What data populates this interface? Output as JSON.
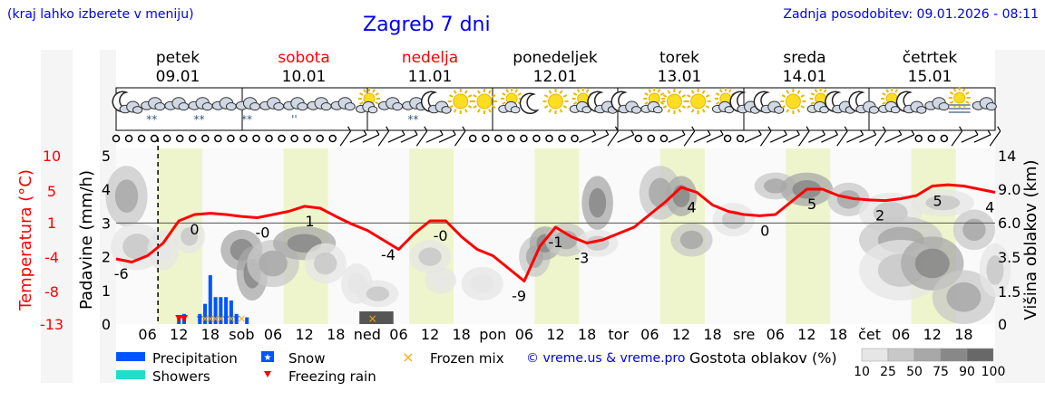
{
  "header": {
    "note": "(kraj lahko izberete v meniju)",
    "title": "Zagreb 7 dni",
    "updated": "Zadnja posodobitev: 09.01.2026 - 08:11",
    "colors": {
      "link": "#0000ee",
      "weekend": "#ff0000"
    }
  },
  "days": [
    {
      "name": "petek",
      "date": "09.01",
      "weekend": false
    },
    {
      "name": "sobota",
      "date": "10.01",
      "weekend": true
    },
    {
      "name": "nedelja",
      "date": "11.01",
      "weekend": true
    },
    {
      "name": "ponedeljek",
      "date": "12.01",
      "weekend": false
    },
    {
      "name": "torek",
      "date": "13.01",
      "weekend": false
    },
    {
      "name": "sreda",
      "date": "14.01",
      "weekend": false
    },
    {
      "name": "četrtek",
      "date": "15.01",
      "weekend": false
    }
  ],
  "weather_icons": [
    "night-cloud",
    "cloud",
    "cloud-snow",
    "cloud-snow",
    "cloud",
    "cloud-snow",
    "cloud",
    "cloud-drizzle",
    "cloud",
    "cloud",
    "sun-cloud",
    "cloud",
    "cloud-snow",
    "night-cloud",
    "sun",
    "sun",
    "sun-cloud",
    "night",
    "sun",
    "sun-cloud",
    "night-cloud",
    "night-cloud",
    "sun-cloud",
    "sun",
    "sun",
    "sun-cloud",
    "night-cloud",
    "night-cloud",
    "sun",
    "sun-cloud",
    "night-cloud",
    "night-cloud",
    "sun-cloud",
    "night-cloud",
    "cloud",
    "fog",
    "cloud"
  ],
  "snow_marks": [
    {
      "icon": 1,
      "text": "**"
    },
    {
      "icon": 3,
      "text": "**"
    },
    {
      "icon": 5,
      "text": "**"
    },
    {
      "icon": 7,
      "text": "''"
    },
    {
      "icon": 12,
      "text": "**"
    }
  ],
  "chart_data": {
    "type": "line",
    "x_unit": "hours from 09.01 00:00",
    "x_range": [
      0,
      168
    ],
    "x_tick_labels": [
      {
        "x": 6,
        "label": "06"
      },
      {
        "x": 12,
        "label": "12"
      },
      {
        "x": 18,
        "label": "18"
      },
      {
        "x": 24,
        "label": "sob"
      },
      {
        "x": 30,
        "label": "06"
      },
      {
        "x": 36,
        "label": "12"
      },
      {
        "x": 42,
        "label": "18"
      },
      {
        "x": 48,
        "label": "ned"
      },
      {
        "x": 54,
        "label": "06"
      },
      {
        "x": 60,
        "label": "12"
      },
      {
        "x": 66,
        "label": "18"
      },
      {
        "x": 72,
        "label": "pon"
      },
      {
        "x": 78,
        "label": "06"
      },
      {
        "x": 84,
        "label": "12"
      },
      {
        "x": 90,
        "label": "18"
      },
      {
        "x": 96,
        "label": "tor"
      },
      {
        "x": 102,
        "label": "06"
      },
      {
        "x": 108,
        "label": "12"
      },
      {
        "x": 114,
        "label": "18"
      },
      {
        "x": 120,
        "label": "sre"
      },
      {
        "x": 126,
        "label": "06"
      },
      {
        "x": 132,
        "label": "12"
      },
      {
        "x": 138,
        "label": "18"
      },
      {
        "x": 144,
        "label": "čet"
      },
      {
        "x": 150,
        "label": "06"
      },
      {
        "x": 156,
        "label": "12"
      },
      {
        "x": 162,
        "label": "18"
      }
    ],
    "now_x": 8,
    "daylight_bands": [
      [
        8,
        16.5
      ],
      [
        32,
        40.5
      ],
      [
        56,
        64.5
      ],
      [
        80,
        88.5
      ],
      [
        104,
        112.5
      ],
      [
        128,
        136.5
      ],
      [
        152,
        160.5
      ]
    ],
    "y_left_precip": {
      "label": "Padavine (mm/h)",
      "range": [
        0,
        5
      ],
      "ticks": [
        "0",
        "1",
        "2",
        "3",
        "4",
        "5"
      ]
    },
    "y_left_temp": {
      "label": "Temperatura (°C)",
      "ticks": [
        "10",
        "5",
        "1",
        "-4",
        "-8",
        "-13"
      ]
    },
    "y_right_cloud": {
      "label": "Višina oblakov (km)",
      "ticks": [
        "0",
        "1.5",
        "3.5",
        "6.0",
        "9.0",
        "14"
      ]
    },
    "temperature": {
      "name": "",
      "color": "#ff0000",
      "points": [
        [
          0,
          -5.5
        ],
        [
          3,
          -6
        ],
        [
          6,
          -5
        ],
        [
          9,
          -3
        ],
        [
          12,
          0.5
        ],
        [
          15,
          1.5
        ],
        [
          18,
          1.7
        ],
        [
          21,
          1.5
        ],
        [
          24,
          1.2
        ],
        [
          27,
          1.0
        ],
        [
          30,
          1.5
        ],
        [
          33,
          2.0
        ],
        [
          36,
          2.8
        ],
        [
          39,
          2.5
        ],
        [
          42,
          1.2
        ],
        [
          45,
          0
        ],
        [
          48,
          -1
        ],
        [
          51,
          -2.5
        ],
        [
          54,
          -4
        ],
        [
          57,
          -1.5
        ],
        [
          60,
          0.5
        ],
        [
          63,
          0.5
        ],
        [
          66,
          -2
        ],
        [
          69,
          -4
        ],
        [
          72,
          -5
        ],
        [
          75,
          -7
        ],
        [
          78,
          -9
        ],
        [
          81,
          -3.5
        ],
        [
          84,
          -0.5
        ],
        [
          87,
          -2
        ],
        [
          90,
          -3
        ],
        [
          93,
          -2.5
        ],
        [
          96,
          -1.5
        ],
        [
          99,
          -0.5
        ],
        [
          102,
          1.5
        ],
        [
          105,
          3.5
        ],
        [
          108,
          5.8
        ],
        [
          111,
          5
        ],
        [
          114,
          3
        ],
        [
          117,
          2
        ],
        [
          120,
          1.5
        ],
        [
          123,
          1.3
        ],
        [
          126,
          1.5
        ],
        [
          129,
          3.5
        ],
        [
          132,
          5.5
        ],
        [
          135,
          5.5
        ],
        [
          138,
          4.5
        ],
        [
          141,
          4
        ],
        [
          144,
          3.8
        ],
        [
          147,
          3.7
        ],
        [
          150,
          4
        ],
        [
          153,
          4.5
        ],
        [
          156,
          6
        ],
        [
          159,
          6.2
        ],
        [
          162,
          6
        ],
        [
          165,
          5.5
        ],
        [
          168,
          5
        ]
      ]
    },
    "temperature_labels": [
      {
        "x": 1,
        "value": "-6"
      },
      {
        "x": 15,
        "value": "0"
      },
      {
        "x": 28,
        "value": "-0"
      },
      {
        "x": 37,
        "value": "1"
      },
      {
        "x": 52,
        "value": "-4"
      },
      {
        "x": 62,
        "value": "-0"
      },
      {
        "x": 77,
        "value": "-9"
      },
      {
        "x": 84,
        "value": "-1"
      },
      {
        "x": 89,
        "value": "-3"
      },
      {
        "x": 110,
        "value": "4"
      },
      {
        "x": 124,
        "value": "0"
      },
      {
        "x": 133,
        "value": "5"
      },
      {
        "x": 146,
        "value": "2"
      },
      {
        "x": 157,
        "value": "5"
      },
      {
        "x": 167,
        "value": "4"
      }
    ],
    "precipitation": {
      "name": "Precipitation",
      "color": "#0055ff",
      "bars": [
        [
          12,
          0.2
        ],
        [
          13,
          0.3
        ],
        [
          16,
          0.3
        ],
        [
          17,
          0.6
        ],
        [
          18,
          1.45
        ],
        [
          19,
          0.8
        ],
        [
          20,
          0.8
        ],
        [
          21,
          0.8
        ],
        [
          22,
          0.7
        ],
        [
          23,
          0.3
        ],
        [
          25,
          0.2
        ]
      ]
    },
    "freezing_rain_x": [
      12,
      13
    ],
    "snow_x": [
      16,
      17,
      18,
      19,
      20,
      21,
      22,
      23
    ],
    "frozen_mix_x": [
      17,
      18,
      19,
      20,
      22,
      24,
      49
    ],
    "legend": [
      {
        "name": "Precipitation",
        "symbol": "bar",
        "color": "#0055ff"
      },
      {
        "name": "Showers",
        "symbol": "bar",
        "color": "#22ddcc"
      },
      {
        "name": "Snow",
        "symbol": "star-box",
        "color": "#0055ff"
      },
      {
        "name": "Freezing rain",
        "symbol": "triangle",
        "color": "#ff0000"
      },
      {
        "name": "Frozen mix",
        "symbol": "x",
        "color": "#ffaa00"
      }
    ],
    "cloud_density": {
      "label": "Gostota oblakov (%)",
      "scale": [
        "10",
        "25",
        "50",
        "75",
        "90",
        "100"
      ],
      "colors": [
        "#e6e6e6",
        "#c8c8c8",
        "#a8a8a8",
        "#888888",
        "#686868"
      ]
    }
  },
  "credit": "© vreme.us & vreme.pro"
}
